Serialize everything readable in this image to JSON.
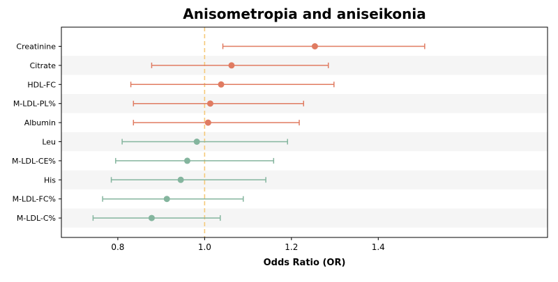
{
  "chart_data": {
    "type": "forest",
    "title": "Anisometropia and aniseikonia",
    "xlabel": "Odds Ratio (OR)",
    "ylabel": "",
    "xlim": [
      0.67,
      1.79
    ],
    "xticks": [
      0.8,
      1.0,
      1.2,
      1.4
    ],
    "xtick_labels": [
      "0.8",
      "1.0",
      "1.2",
      "1.4"
    ],
    "reference_line": 1.0,
    "grid": false,
    "row_banding": true,
    "colors": {
      "positive": "#e07b61",
      "negative": "#84b59e",
      "reference": "#f5c97a",
      "band": "#f5f5f5"
    },
    "rows": [
      {
        "label": "Creatinine",
        "or": 1.254,
        "lower": 1.042,
        "upper": 1.507,
        "group": "positive"
      },
      {
        "label": "Citrate",
        "or": 1.062,
        "lower": 0.878,
        "upper": 1.285,
        "group": "positive"
      },
      {
        "label": "HDL-FC",
        "or": 1.038,
        "lower": 0.83,
        "upper": 1.298,
        "group": "positive"
      },
      {
        "label": "M-LDL-PL%",
        "or": 1.013,
        "lower": 0.836,
        "upper": 1.228,
        "group": "positive"
      },
      {
        "label": "Albumin",
        "or": 1.008,
        "lower": 0.836,
        "upper": 1.218,
        "group": "positive"
      },
      {
        "label": "Leu",
        "or": 0.982,
        "lower": 0.81,
        "upper": 1.191,
        "group": "negative"
      },
      {
        "label": "M-LDL-CE%",
        "or": 0.96,
        "lower": 0.795,
        "upper": 1.159,
        "group": "negative"
      },
      {
        "label": "His",
        "or": 0.945,
        "lower": 0.785,
        "upper": 1.141,
        "group": "negative"
      },
      {
        "label": "M-LDL-FC%",
        "or": 0.913,
        "lower": 0.765,
        "upper": 1.089,
        "group": "negative"
      },
      {
        "label": "M-LDL-C%",
        "or": 0.878,
        "lower": 0.743,
        "upper": 1.036,
        "group": "negative"
      }
    ]
  }
}
